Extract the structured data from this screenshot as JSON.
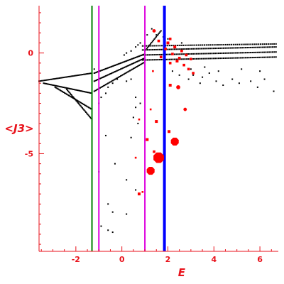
{
  "chart_data": {
    "type": "scatter",
    "title": "",
    "xlabel": "E",
    "ylabel": "<J3>",
    "xlim": [
      -3.6,
      6.8
    ],
    "ylim": [
      -9.85,
      2.35
    ],
    "grid": false,
    "legend": "none",
    "colors": {
      "axes": "#e8121b",
      "black_points": "#000000",
      "red_points": "#ff0000",
      "green_line": "#008000",
      "magenta_line": "#dd00dd",
      "blue_line": "#0000ff"
    },
    "x_ticks": [
      {
        "value": -2,
        "label": "-2"
      },
      {
        "value": 0,
        "label": "0"
      },
      {
        "value": 2,
        "label": "2"
      },
      {
        "value": 4,
        "label": "4"
      },
      {
        "value": 6,
        "label": "6"
      }
    ],
    "y_ticks": [
      {
        "value": 0,
        "label": "0"
      },
      {
        "value": -5,
        "label": "-5"
      }
    ],
    "vertical_lines": [
      {
        "x": -1.3,
        "color": "#008000",
        "width": 2
      },
      {
        "x": -1.0,
        "color": "#dd00dd",
        "width": 2
      },
      {
        "x": 1.0,
        "color": "#dd00dd",
        "width": 2
      },
      {
        "x": 1.85,
        "color": "#0000ff",
        "width": 4
      }
    ],
    "black_sequences": [
      {
        "x_start": 0.9,
        "x_end": 6.7,
        "y_start": 0.15,
        "y_end": 0.3,
        "count": 80
      },
      {
        "x_start": 0.9,
        "x_end": 6.7,
        "y_start": -0.1,
        "y_end": 0.05,
        "count": 80
      },
      {
        "x_start": 0.9,
        "x_end": 6.7,
        "y_start": -0.35,
        "y_end": -0.2,
        "count": 80
      },
      {
        "x_start": 0.9,
        "x_end": 6.7,
        "y_start": 0.35,
        "y_end": 0.45,
        "count": 70
      },
      {
        "x_start": -1.2,
        "x_end": 1.0,
        "y_start": -1.0,
        "y_end": -0.05,
        "count": 45
      },
      {
        "x_start": -1.2,
        "x_end": 1.0,
        "y_start": -1.4,
        "y_end": -0.25,
        "count": 45
      },
      {
        "x_start": -1.2,
        "x_end": 1.0,
        "y_start": -1.9,
        "y_end": -0.45,
        "count": 45
      },
      {
        "x_start": -3.6,
        "x_end": -1.3,
        "y_start": -1.4,
        "y_end": -1.0,
        "count": 40
      },
      {
        "x_start": -3.4,
        "x_end": -1.3,
        "y_start": -1.5,
        "y_end": -2.0,
        "count": 40
      },
      {
        "x_start": -2.9,
        "x_end": -1.3,
        "y_start": -1.7,
        "y_end": -2.8,
        "count": 36
      },
      {
        "x_start": -2.4,
        "x_end": -1.3,
        "y_start": -1.8,
        "y_end": -3.3,
        "count": 30
      },
      {
        "x_start": 1.0,
        "x_end": 1.7,
        "y_start": 0.1,
        "y_end": 1.1,
        "count": 18
      }
    ],
    "black_points": [
      [
        -1.2,
        -0.8
      ],
      [
        -1.0,
        -0.9
      ],
      [
        -0.8,
        -1.2
      ],
      [
        -0.9,
        -2.2
      ],
      [
        -1.0,
        -2.5
      ],
      [
        -0.7,
        -2.0
      ],
      [
        -0.6,
        -1.7
      ],
      [
        -0.4,
        -1.5
      ],
      [
        -0.2,
        -1.3
      ],
      [
        0.2,
        -1.4
      ],
      [
        0.4,
        -1.3
      ],
      [
        0.6,
        -2.2
      ],
      [
        0.6,
        -2.7
      ],
      [
        0.5,
        -3.2
      ],
      [
        0.7,
        -3.5
      ],
      [
        0.8,
        -2.5
      ],
      [
        0.4,
        -4.2
      ],
      [
        -0.7,
        -4.1
      ],
      [
        -1.0,
        -5.9
      ],
      [
        -0.3,
        -5.5
      ],
      [
        0.2,
        -6.3
      ],
      [
        0.6,
        -6.8
      ],
      [
        -0.6,
        -7.5
      ],
      [
        -0.4,
        -7.9
      ],
      [
        0.2,
        -8.0
      ],
      [
        -0.9,
        -8.6
      ],
      [
        -0.6,
        -8.8
      ],
      [
        -0.4,
        -8.9
      ],
      [
        2.2,
        -0.9
      ],
      [
        2.5,
        -1.1
      ],
      [
        2.9,
        -1.3
      ],
      [
        3.1,
        -1.1
      ],
      [
        3.4,
        -1.5
      ],
      [
        3.5,
        -1.2
      ],
      [
        3.8,
        -1.0
      ],
      [
        4.1,
        -1.4
      ],
      [
        4.4,
        -1.6
      ],
      [
        4.8,
        -1.3
      ],
      [
        5.1,
        -1.5
      ],
      [
        5.6,
        -1.4
      ],
      [
        5.9,
        -1.7
      ],
      [
        6.2,
        -1.3
      ],
      [
        6.6,
        -1.9
      ],
      [
        2.0,
        0.7
      ],
      [
        2.6,
        0.5
      ],
      [
        1.3,
        1.2
      ],
      [
        1.5,
        0.9
      ],
      [
        1.8,
        0.8
      ],
      [
        1.1,
        0.9
      ],
      [
        0.8,
        0.5
      ],
      [
        0.7,
        0.4
      ],
      [
        0.6,
        0.3
      ],
      [
        0.4,
        0.1
      ],
      [
        0.2,
        0.0
      ],
      [
        0.1,
        -0.1
      ],
      [
        3.0,
        -0.8
      ],
      [
        3.6,
        -0.7
      ],
      [
        4.2,
        -0.9
      ],
      [
        5.2,
        -0.8
      ],
      [
        6.0,
        -0.9
      ]
    ],
    "red_points": [
      {
        "x": 1.6,
        "y": -5.2,
        "size": 16
      },
      {
        "x": 2.3,
        "y": -4.4,
        "size": 12
      },
      {
        "x": 1.25,
        "y": -5.85,
        "size": 12
      },
      {
        "x": 2.45,
        "y": -1.7,
        "size": 6
      },
      {
        "x": 2.75,
        "y": -2.8,
        "size": 5
      },
      {
        "x": 1.4,
        "y": 1.1,
        "size": 5
      },
      {
        "x": 2.05,
        "y": -3.9,
        "size": 4
      },
      {
        "x": 1.5,
        "y": -3.4,
        "size": 4
      },
      {
        "x": 2.1,
        "y": -1.6,
        "size": 4
      },
      {
        "x": 1.1,
        "y": -4.3,
        "size": 4
      },
      {
        "x": 0.75,
        "y": -7.0,
        "size": 4
      },
      {
        "x": 1.4,
        "y": -4.9,
        "size": 3
      },
      {
        "x": 2.0,
        "y": 0.5,
        "size": 4
      },
      {
        "x": 2.3,
        "y": 0.3,
        "size": 4
      },
      {
        "x": 2.6,
        "y": 0.1,
        "size": 3
      },
      {
        "x": 2.8,
        "y": -0.1,
        "size": 3
      },
      {
        "x": 2.4,
        "y": -0.4,
        "size": 4
      },
      {
        "x": 2.7,
        "y": -0.6,
        "size": 3
      },
      {
        "x": 2.9,
        "y": -0.8,
        "size": 3
      },
      {
        "x": 3.1,
        "y": -1.0,
        "size": 3
      },
      {
        "x": 3.0,
        "y": -0.3,
        "size": 3
      },
      {
        "x": 2.2,
        "y": -0.05,
        "size": 3
      },
      {
        "x": 2.5,
        "y": -0.25,
        "size": 3
      },
      {
        "x": 1.9,
        "y": 0.2,
        "size": 3
      },
      {
        "x": 1.7,
        "y": -0.2,
        "size": 3
      },
      {
        "x": 2.1,
        "y": -0.5,
        "size": 3
      },
      {
        "x": 1.35,
        "y": -0.9,
        "size": 2
      },
      {
        "x": 1.25,
        "y": -2.8,
        "size": 2
      },
      {
        "x": 0.75,
        "y": -3.3,
        "size": 2
      },
      {
        "x": 0.6,
        "y": -5.2,
        "size": 2
      },
      {
        "x": 0.9,
        "y": -6.9,
        "size": 2
      },
      {
        "x": 2.1,
        "y": 0.7,
        "size": 3
      },
      {
        "x": 1.6,
        "y": 0.6,
        "size": 3
      }
    ]
  }
}
